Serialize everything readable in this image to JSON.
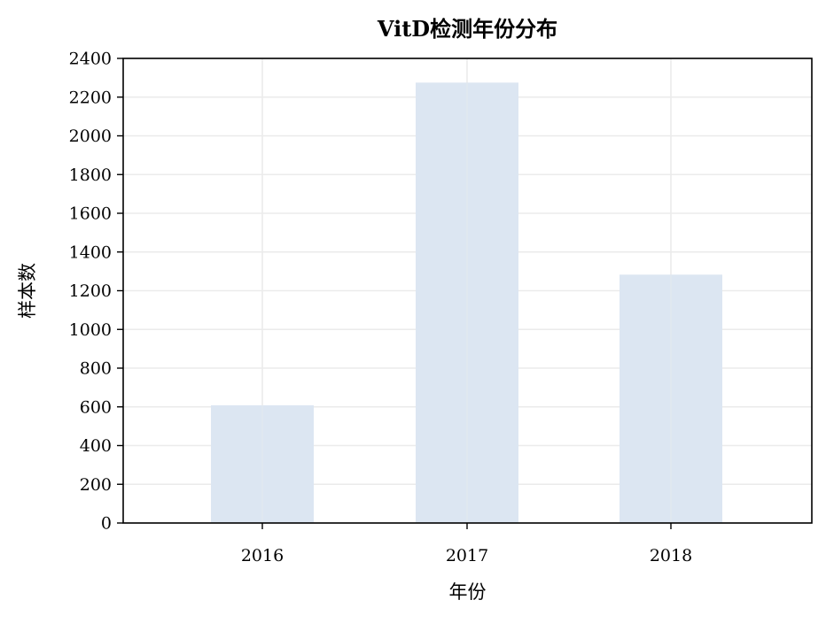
{
  "chart_data": {
    "type": "bar",
    "title": "VitD检测年份分布",
    "xlabel": "年份",
    "ylabel": "样本数",
    "categories": [
      "2016",
      "2017",
      "2018"
    ],
    "values": [
      608,
      2275,
      1283
    ],
    "ylim": [
      0,
      2400
    ],
    "yticks": [
      0,
      200,
      400,
      600,
      800,
      1000,
      1200,
      1400,
      1600,
      1800,
      2000,
      2200,
      2400
    ],
    "grid": true,
    "legend": "none",
    "colors": {
      "bar": "#dce6f2",
      "grid": "#ebebeb",
      "axis": "#000000"
    }
  }
}
